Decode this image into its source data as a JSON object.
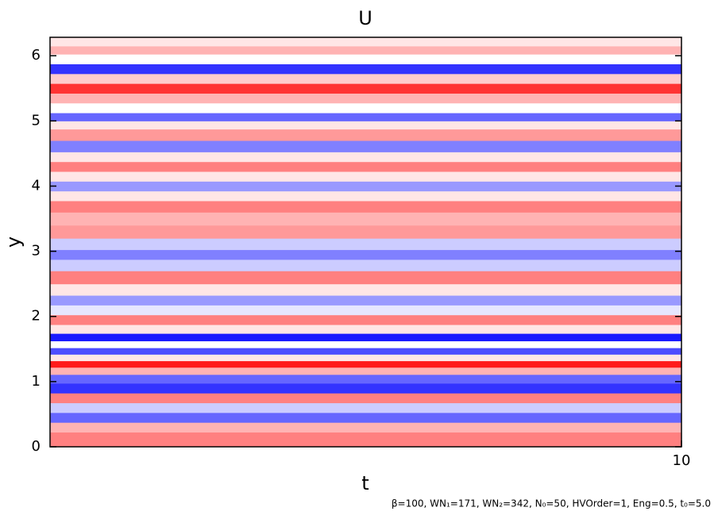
{
  "chart_data": {
    "type": "contour",
    "title": "U",
    "x_label": "t",
    "y_label": "y",
    "footnote": "β=100, WN₁=171, WN₂=342, N₀=50, HVOrder=1, Eng=0.5, t₀=5.0",
    "xlim": [
      0,
      10
    ],
    "xticks": [
      10
    ],
    "ylim": [
      0,
      6.283
    ],
    "yticks": [
      0,
      1,
      2,
      3,
      4,
      5,
      6
    ],
    "clim": [
      -1,
      1
    ],
    "low_color": "#0000ff",
    "mid_color": "#ffffff",
    "high_color": "#ff0000",
    "y": [
      0.15,
      0.3,
      0.45,
      0.6,
      0.75,
      0.9,
      1.05,
      1.17,
      1.27,
      1.37,
      1.47,
      1.57,
      1.68,
      1.8,
      1.95,
      2.1,
      2.25,
      2.4,
      2.6,
      2.8,
      2.95,
      3.1,
      3.3,
      3.5,
      3.7,
      3.85,
      4.0,
      4.15,
      4.3,
      4.45,
      4.6,
      4.8,
      4.95,
      5.05,
      5.2,
      5.35,
      5.5,
      5.65,
      5.8,
      5.95,
      6.1,
      6.2
    ],
    "values": [
      0.5,
      0.3,
      -0.6,
      -0.2,
      0.5,
      -0.8,
      -0.6,
      0.3,
      0.9,
      0.1,
      -0.7,
      0,
      -0.9,
      0.1,
      0.5,
      -0.1,
      -0.4,
      0.1,
      0.5,
      -0.2,
      -0.5,
      -0.2,
      0.4,
      0.3,
      0.5,
      0.1,
      -0.4,
      0.1,
      0.5,
      0.1,
      -0.5,
      0.4,
      0.1,
      -0.6,
      0,
      0.3,
      0.8,
      0.2,
      -0.8,
      0,
      0.3,
      0.1
    ]
  }
}
